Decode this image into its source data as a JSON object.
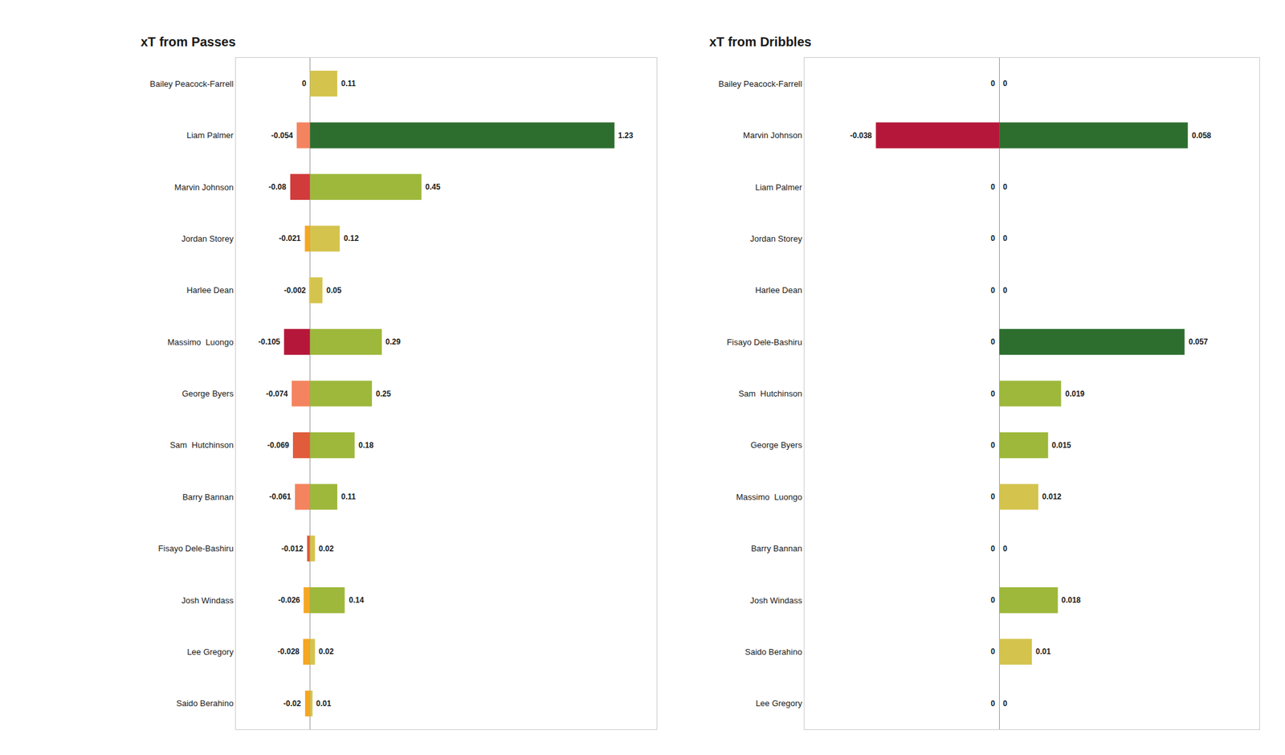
{
  "chart_data": [
    {
      "type": "bar",
      "title": "xT from Passes",
      "orientation": "horizontal",
      "categories": [
        "Bailey Peacock-Farrell",
        "Liam Palmer",
        "Marvin Johnson",
        "Jordan Storey",
        "Harlee Dean",
        "Massimo  Luongo",
        "George Byers",
        "Sam  Hutchinson",
        "Barry Bannan",
        "Fisayo Dele-Bashiru",
        "Josh Windass",
        "Lee Gregory",
        "Saido Berahino"
      ],
      "series": [
        {
          "values": [
            0,
            -0.054,
            -0.08,
            -0.021,
            -0.002,
            -0.105,
            -0.074,
            -0.069,
            -0.061,
            -0.012,
            -0.026,
            -0.028,
            -0.02
          ],
          "colors": [
            "#ffffff",
            "#f4845f",
            "#d13b3b",
            "#f5a623",
            "#e8c94a",
            "#b5173a",
            "#f4845f",
            "#e05c3a",
            "#f4845f",
            "#e05c3a",
            "#f5a623",
            "#f5a623",
            "#f5a623"
          ]
        },
        {
          "values": [
            0.11,
            1.23,
            0.45,
            0.12,
            0.05,
            0.29,
            0.25,
            0.18,
            0.11,
            0.02,
            0.14,
            0.02,
            0.01
          ],
          "colors": [
            "#d4c44e",
            "#2d6e2f",
            "#9db83b",
            "#d4c44e",
            "#d4c44e",
            "#9db83b",
            "#9db83b",
            "#9db83b",
            "#9db83b",
            "#d4c44e",
            "#9db83b",
            "#d4c44e",
            "#d4c44e"
          ]
        }
      ],
      "xlim": [
        -0.3,
        1.4
      ],
      "data_labels": true,
      "tick_labels": "y",
      "grid": false
    },
    {
      "type": "bar",
      "title": "xT from Dribbles",
      "orientation": "horizontal",
      "categories": [
        "Bailey Peacock-Farrell",
        "Marvin Johnson",
        "Liam Palmer",
        "Jordan Storey",
        "Harlee Dean",
        "Fisayo Dele-Bashiru",
        "Sam  Hutchinson",
        "George Byers",
        "Massimo  Luongo",
        "Barry Bannan",
        "Josh Windass",
        "Saido Berahino",
        "Lee Gregory"
      ],
      "series": [
        {
          "values": [
            0,
            -0.038,
            0,
            0,
            0,
            0,
            0,
            0,
            0,
            0,
            0,
            0,
            0
          ],
          "colors": [
            "#ffffff",
            "#b5173a",
            "#ffffff",
            "#ffffff",
            "#ffffff",
            "#ffffff",
            "#ffffff",
            "#ffffff",
            "#ffffff",
            "#ffffff",
            "#ffffff",
            "#ffffff",
            "#ffffff"
          ]
        },
        {
          "values": [
            0,
            0.058,
            0,
            0,
            0,
            0.057,
            0.019,
            0.015,
            0.012,
            0,
            0.018,
            0.01,
            0
          ],
          "colors": [
            "#ffffff",
            "#2d6e2f",
            "#ffffff",
            "#ffffff",
            "#ffffff",
            "#2d6e2f",
            "#9db83b",
            "#9db83b",
            "#d4c44e",
            "#ffffff",
            "#9db83b",
            "#d4c44e",
            "#ffffff"
          ]
        }
      ],
      "xlim": [
        -0.06,
        0.08
      ],
      "data_labels": true,
      "tick_labels": "y",
      "grid": false
    }
  ]
}
